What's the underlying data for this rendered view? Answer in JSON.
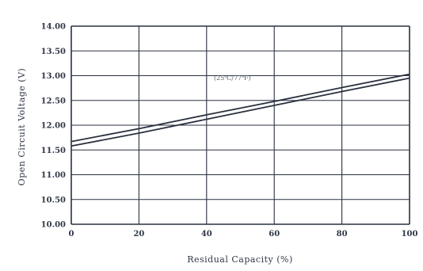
{
  "chart_data": {
    "type": "line",
    "title": "",
    "xlabel": "Residual Capacity (%)",
    "ylabel": "Open Circuit Voltage (V)",
    "annotation": "(25℃/77℉)",
    "xlim": [
      0,
      100
    ],
    "ylim": [
      10.0,
      14.0
    ],
    "x_ticks": [
      "0",
      "20",
      "40",
      "60",
      "80",
      "100"
    ],
    "y_ticks": [
      "10.00",
      "10.50",
      "11.00",
      "11.50",
      "12.00",
      "12.50",
      "13.00",
      "13.50",
      "14.00"
    ],
    "grid": true,
    "series": [
      {
        "x": [
          0,
          20,
          40,
          60,
          80,
          100
        ],
        "values": [
          11.67,
          11.93,
          12.21,
          12.48,
          12.76,
          13.03
        ]
      },
      {
        "x": [
          0,
          20,
          40,
          60,
          80,
          100
        ],
        "values": [
          11.58,
          11.84,
          12.12,
          12.4,
          12.68,
          12.95
        ]
      }
    ],
    "colors": {
      "line": "#2a3140",
      "grid": "#2a3140",
      "text": "#303848"
    }
  }
}
